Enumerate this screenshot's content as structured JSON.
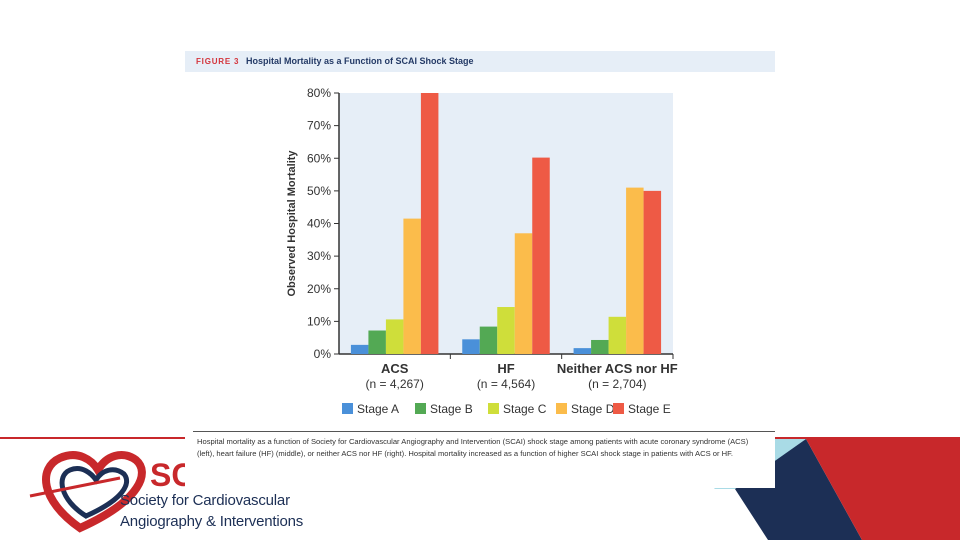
{
  "figure": {
    "number_label": "FIGURE 3",
    "title": "Hospital Mortality as a Function of SCAI Shock Stage",
    "caption": "Hospital mortality as a function of Society for Cardiovascular Angiography and Intervention (SCAI) shock stage among patients with acute coronary syndrome (ACS) (left), heart failure (HF) (middle), or neither ACS nor HF (right). Hospital mortality increased as a function of higher SCAI shock stage in patients with ACS or HF."
  },
  "logo": {
    "letters": "SC",
    "line1": "Society for Cardiovascular",
    "line2": "Angiography & Interventions"
  },
  "colors": {
    "stage_a": "#4a90d9",
    "stage_b": "#53a954",
    "stage_c": "#cfde3a",
    "stage_d": "#fbbc4b",
    "stage_e": "#ee5a45",
    "brand_red": "#c8282b",
    "brand_navy": "#1c2f55",
    "brand_light_blue": "#a9dbe6",
    "plot_bg": "#e6eef7"
  },
  "chart_data": {
    "type": "bar",
    "title": "Hospital Mortality as a Function of SCAI Shock Stage",
    "xlabel": "",
    "ylabel": "Observed Hospital Mortality",
    "ylim": [
      0,
      80
    ],
    "yticks": [
      0,
      10,
      20,
      30,
      40,
      50,
      60,
      70,
      80
    ],
    "ytick_labels": [
      "0%",
      "10%",
      "20%",
      "30%",
      "40%",
      "50%",
      "60%",
      "70%",
      "80%"
    ],
    "categories": [
      "ACS",
      "HF",
      "Neither ACS nor HF"
    ],
    "category_counts": [
      "(n = 4,267)",
      "(n = 4,564)",
      "(n = 2,704)"
    ],
    "legend_position": "bottom",
    "series": [
      {
        "name": "Stage A",
        "values": [
          2.8,
          4.5,
          1.8
        ]
      },
      {
        "name": "Stage B",
        "values": [
          7.2,
          8.4,
          4.3
        ]
      },
      {
        "name": "Stage C",
        "values": [
          10.6,
          14.4,
          11.4
        ]
      },
      {
        "name": "Stage D",
        "values": [
          41.5,
          37.0,
          51.0
        ]
      },
      {
        "name": "Stage E",
        "values": [
          80.0,
          60.2,
          50.0
        ]
      }
    ]
  }
}
